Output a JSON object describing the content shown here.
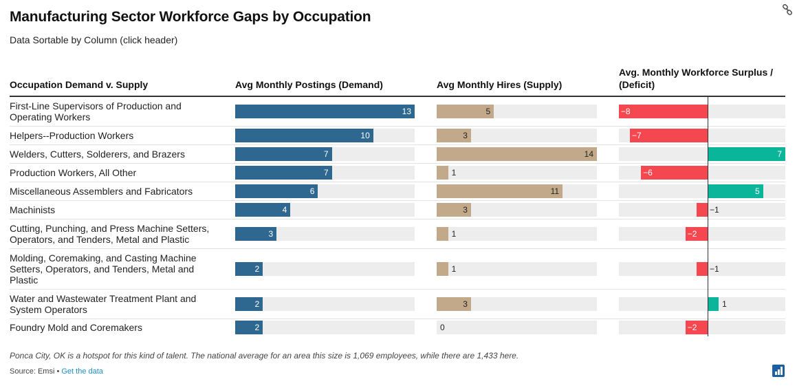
{
  "title": "Manufacturing Sector Workforce Gaps by Occupation",
  "subtitle": "Data Sortable by Column (click header)",
  "headers": {
    "occupation": "Occupation Demand v. Supply",
    "demand": "Avg Monthly Postings (Demand)",
    "supply": "Avg Monthly Hires (Supply)",
    "surplus_line1": "Avg. Monthly Workforce Surplus /",
    "surplus_line2": "(Deficit)"
  },
  "colors": {
    "demand": "#2e6891",
    "supply": "#c1a98a",
    "deficit": "#f4474f",
    "surplus": "#0ab59a"
  },
  "footer": {
    "note": "Ponca City, OK is a hotspot for this kind of talent. The national average for an area this size is 1,069 employees, while there are 1,433 here.",
    "source_prefix": "Source: Emsi • ",
    "source_link": "Get the data"
  },
  "chart_data": {
    "type": "table",
    "title": "Manufacturing Sector Workforce Gaps by Occupation",
    "columns": [
      "Occupation Demand v. Supply",
      "Avg Monthly Postings (Demand)",
      "Avg Monthly Hires (Supply)",
      "Avg. Monthly Workforce Surplus / (Deficit)"
    ],
    "demand_range": [
      0,
      13
    ],
    "supply_range": [
      0,
      14
    ],
    "surplus_range": [
      -11,
      7
    ],
    "rows": [
      {
        "occupation": "First-Line Supervisors of Production and Operating Workers",
        "demand": 13,
        "supply": 5,
        "surplus": -8,
        "surplus_label": "−8"
      },
      {
        "occupation": "Helpers--Production Workers",
        "demand": 10,
        "supply": 3,
        "surplus": -7,
        "surplus_label": "−7"
      },
      {
        "occupation": "Welders, Cutters, Solderers, and Brazers",
        "demand": 7,
        "supply": 14,
        "surplus": 7,
        "surplus_label": "7"
      },
      {
        "occupation": "Production Workers, All Other",
        "demand": 7,
        "supply": 1,
        "surplus": -6,
        "surplus_label": "−6"
      },
      {
        "occupation": "Miscellaneous Assemblers and Fabricators",
        "demand": 6,
        "supply": 11,
        "surplus": 5,
        "surplus_label": "5"
      },
      {
        "occupation": "Machinists",
        "demand": 4,
        "supply": 3,
        "surplus": -1,
        "surplus_label": "−1"
      },
      {
        "occupation": "Cutting, Punching, and Press Machine Setters, Operators, and Tenders, Metal and Plastic",
        "demand": 3,
        "supply": 1,
        "surplus": -2,
        "surplus_label": "−2"
      },
      {
        "occupation": "Molding, Coremaking, and Casting Machine Setters, Operators, and Tenders, Metal and Plastic",
        "demand": 2,
        "supply": 1,
        "surplus": -1,
        "surplus_label": "−1"
      },
      {
        "occupation": "Water and Wastewater Treatment Plant and System Operators",
        "demand": 2,
        "supply": 3,
        "surplus": 1,
        "surplus_label": "1"
      },
      {
        "occupation": "Foundry Mold and Coremakers",
        "demand": 2,
        "supply": 0,
        "surplus": -2,
        "surplus_label": "−2"
      }
    ]
  }
}
